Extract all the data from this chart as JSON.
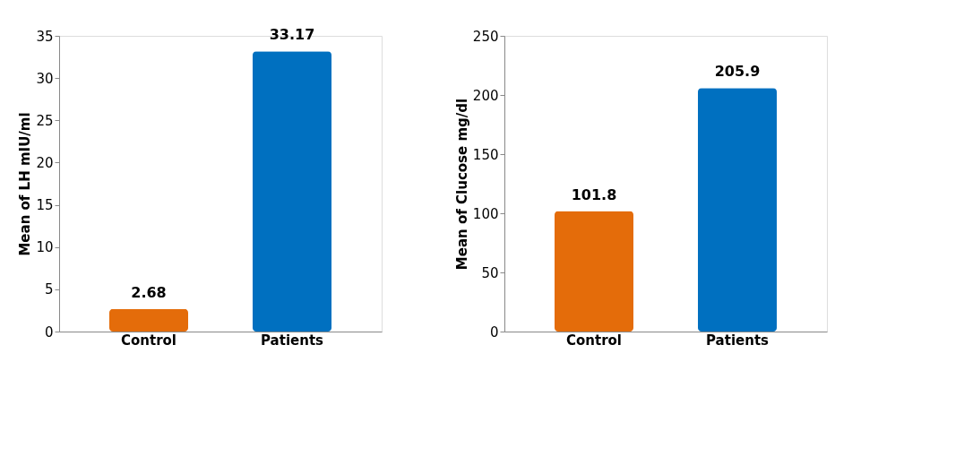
{
  "chart_data": [
    {
      "type": "bar",
      "ylabel": "Mean of LH mIU/ml",
      "categories": [
        "Control",
        "Patients"
      ],
      "values": [
        2.68,
        33.17
      ],
      "colors": [
        "#e46c0a",
        "#0070c0"
      ],
      "ylim": [
        0,
        35
      ],
      "yticks": [
        0,
        5,
        10,
        15,
        20,
        25,
        30,
        35
      ],
      "data_labels": true
    },
    {
      "type": "bar",
      "ylabel": "Mean of Clucose mg/dl",
      "categories": [
        "Control",
        "Patients"
      ],
      "values": [
        101.8,
        205.9
      ],
      "colors": [
        "#e46c0a",
        "#0070c0"
      ],
      "ylim": [
        0,
        250
      ],
      "yticks": [
        0,
        50,
        100,
        150,
        200,
        250
      ],
      "data_labels": true
    }
  ]
}
